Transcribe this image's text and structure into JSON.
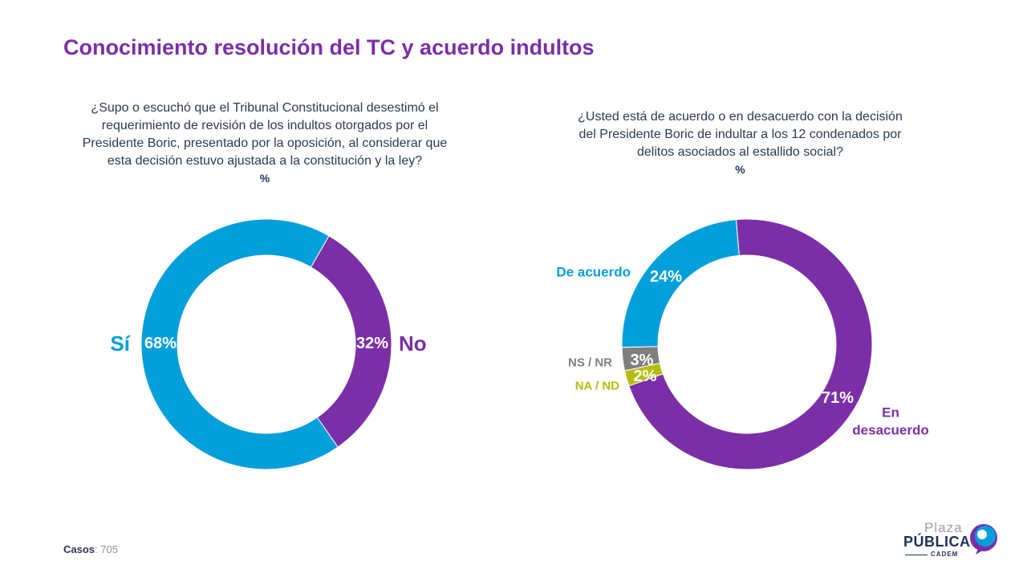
{
  "title": "Conocimiento resolución del TC y acuerdo indultos",
  "footer": {
    "label": "Casos",
    "value": ": 705"
  },
  "logo": {
    "line1": "Plaza",
    "line2": "PÚBLICA",
    "line3": "CADEM"
  },
  "colors": {
    "purple": "#7b2fa6",
    "blue": "#039fdb",
    "gray": "#7f7f7f",
    "olive": "#b5bd0c",
    "navy": "#1e3257"
  },
  "chart_data": [
    {
      "type": "pie",
      "subtitle": "¿Supo o escuchó que el Tribunal Constitucional desestimó el\nrequerimiento de revisión de los indultos otorgados por el\nPresidente Boric, presentado por la oposición, al considerar que\nesta decisión estuvo ajustada a la constitución y la ley?",
      "unit": "%",
      "slices": [
        {
          "label": "No",
          "value": 32,
          "text": "32%",
          "color": "#7b2fa6"
        },
        {
          "label": "Sí",
          "value": 68,
          "text": "68%",
          "color": "#039fdb"
        }
      ]
    },
    {
      "type": "pie",
      "subtitle": "¿Usted está de acuerdo o en desacuerdo con la decisión\ndel Presidente Boric de indultar a los 12 condenados por\ndelitos asociados al estallido social?",
      "unit": "%",
      "slices": [
        {
          "label": "En desacuerdo",
          "value": 71,
          "text": "71%",
          "color": "#7b2fa6"
        },
        {
          "label": "NA / ND",
          "value": 2,
          "text": "2%",
          "color": "#b5bd0c"
        },
        {
          "label": "NS / NR",
          "value": 3,
          "text": "3%",
          "color": "#7f7f7f"
        },
        {
          "label": "De acuerdo",
          "value": 24,
          "text": "24%",
          "color": "#039fdb"
        }
      ]
    }
  ]
}
